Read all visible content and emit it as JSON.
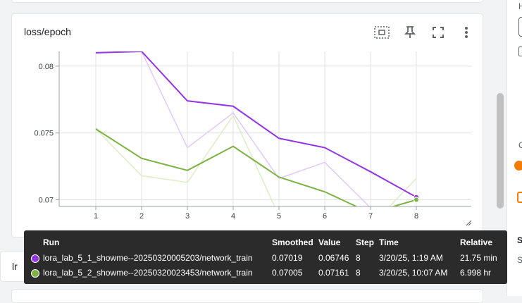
{
  "card": {
    "title": "loss/epoch",
    "icons": [
      "fit-domain-icon",
      "pin-icon",
      "fullscreen-icon",
      "more-vert-icon"
    ]
  },
  "lr_card": {
    "title": "lr"
  },
  "right_panel": {
    "letters": [
      "H",
      "S",
      "S",
      "C"
    ]
  },
  "chart_data": {
    "type": "line",
    "x": [
      1,
      2,
      3,
      4,
      5,
      6,
      7,
      8
    ],
    "xticks": [
      "1",
      "2",
      "3",
      "4",
      "5",
      "6",
      "7",
      "8"
    ],
    "yticks": [
      "0.08",
      "0.075",
      "0.07"
    ],
    "ylim": [
      0.0695,
      0.0811
    ],
    "grid": true,
    "series": [
      {
        "name": "lora_lab_5_1_showme--20250320005203/network_train",
        "color": "#9334e6",
        "raw_color": "#e4c9f7",
        "smoothed": [
          0.081,
          0.0811,
          0.0774,
          0.077,
          0.0746,
          0.0739,
          0.0721,
          0.0702
        ],
        "raw": [
          0.081,
          0.0811,
          0.0739,
          0.0765,
          0.0716,
          0.0728,
          0.0694,
          0.0675
        ]
      },
      {
        "name": "lora_lab_5_2_showme--20250320023453/network_train",
        "color": "#7cb342",
        "raw_color": "#dcedc8",
        "smoothed": [
          0.0753,
          0.0731,
          0.0722,
          0.074,
          0.0717,
          0.0706,
          0.069,
          0.07
        ],
        "raw": [
          0.0753,
          0.0718,
          0.0713,
          0.0763,
          0.0688,
          0.0685,
          0.068,
          0.0716
        ]
      }
    ]
  },
  "tooltip": {
    "headers": {
      "run": "Run",
      "smoothed": "Smoothed",
      "value": "Value",
      "step": "Step",
      "time": "Time",
      "relative": "Relative"
    },
    "rows": [
      {
        "color": "#9334e6",
        "run": "lora_lab_5_1_showme--20250320005203/network_train",
        "smoothed": "0.07019",
        "value": "0.06746",
        "step": "8",
        "time": "3/20/25, 1:19 AM",
        "relative": "21.75 min"
      },
      {
        "color": "#7cb342",
        "run": "lora_lab_5_2_showme--20250320023453/network_train",
        "smoothed": "0.07005",
        "value": "0.07161",
        "step": "8",
        "time": "3/20/25, 10:07 AM",
        "relative": "6.998 hr"
      }
    ]
  }
}
